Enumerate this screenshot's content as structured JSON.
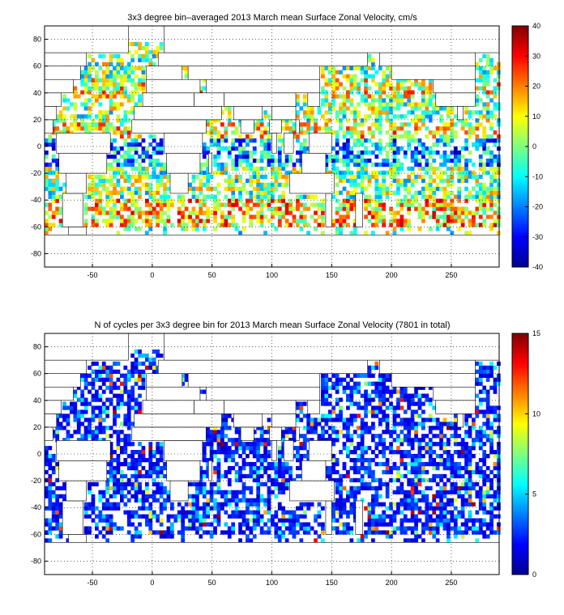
{
  "chart_data": [
    {
      "type": "heatmap",
      "title": "3x3 degree bin–averaged 2013 March mean Surface Zonal Velocity, cm/s",
      "x_ticks": [
        -50,
        0,
        50,
        100,
        150,
        200,
        250
      ],
      "y_ticks": [
        80,
        60,
        40,
        20,
        0,
        -20,
        -40,
        -60,
        -80
      ],
      "xlim": [
        -90,
        290
      ],
      "ylim": [
        -90,
        90
      ],
      "grid": true,
      "bin_size_deg": 3,
      "colorbar": {
        "min": -40,
        "max": 40,
        "ticks": [
          40,
          30,
          20,
          10,
          0,
          -10,
          -20,
          -30,
          -40
        ],
        "colormap": "jet",
        "placement": "right"
      }
    },
    {
      "type": "heatmap",
      "title": "N of cycles per 3x3 degree bin for 2013 March mean Surface Zonal Velocity (7801 in total)",
      "x_ticks": [
        -50,
        0,
        50,
        100,
        150,
        200,
        250
      ],
      "y_ticks": [
        80,
        60,
        40,
        20,
        0,
        -20,
        -40,
        -60,
        -80
      ],
      "xlim": [
        -90,
        290
      ],
      "ylim": [
        -90,
        90
      ],
      "grid": true,
      "bin_size_deg": 3,
      "total_cycles": 7801,
      "colorbar": {
        "min": 0,
        "max": 15,
        "ticks": [
          15,
          10,
          5,
          0
        ],
        "colormap": "jet",
        "placement": "right"
      }
    }
  ]
}
